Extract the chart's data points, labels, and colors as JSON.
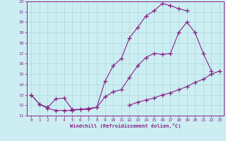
{
  "xlabel": "Windchill (Refroidissement éolien,°C)",
  "xlim": [
    -0.5,
    23.5
  ],
  "ylim": [
    11,
    22
  ],
  "xticks": [
    0,
    1,
    2,
    3,
    4,
    5,
    6,
    7,
    8,
    9,
    10,
    11,
    12,
    13,
    14,
    15,
    16,
    17,
    18,
    19,
    20,
    21,
    22,
    23
  ],
  "yticks": [
    11,
    12,
    13,
    14,
    15,
    16,
    17,
    18,
    19,
    20,
    21,
    22
  ],
  "bg_color": "#cceef2",
  "grid_color": "#aad8de",
  "line_color": "#882288",
  "line1_x": [
    0,
    1,
    2,
    3,
    4,
    5,
    6,
    7,
    8,
    9,
    10,
    11,
    12,
    13,
    14,
    15,
    16,
    17,
    18,
    19,
    20,
    21,
    22
  ],
  "line1_y": [
    13.0,
    12.1,
    11.8,
    12.6,
    12.7,
    11.6,
    11.6,
    11.6,
    11.8,
    14.3,
    15.8,
    16.5,
    18.5,
    19.5,
    20.6,
    21.1,
    21.8,
    21.6,
    21.3,
    21.1,
    null,
    null,
    null
  ],
  "line2_x": [
    0,
    1,
    2,
    3,
    4,
    5,
    6,
    7,
    8,
    9,
    10,
    11,
    12,
    13,
    14,
    15,
    16,
    17,
    18,
    19,
    20,
    21,
    22
  ],
  "line2_y": [
    13.0,
    12.1,
    11.7,
    11.5,
    11.5,
    11.5,
    11.6,
    11.7,
    11.8,
    12.8,
    13.3,
    13.5,
    14.7,
    15.8,
    16.6,
    17.0,
    16.9,
    17.0,
    19.0,
    20.0,
    19.0,
    17.0,
    15.3
  ],
  "line3_x": [
    0,
    1,
    2,
    3,
    4,
    5,
    6,
    7,
    8,
    9,
    10,
    11,
    12,
    13,
    14,
    15,
    16,
    17,
    18,
    19,
    20,
    21,
    22,
    23
  ],
  "line3_y": [
    null,
    null,
    null,
    null,
    null,
    null,
    null,
    null,
    null,
    null,
    null,
    null,
    12.0,
    12.3,
    12.5,
    12.7,
    13.0,
    13.2,
    13.5,
    13.8,
    14.2,
    14.5,
    15.0,
    15.3
  ]
}
